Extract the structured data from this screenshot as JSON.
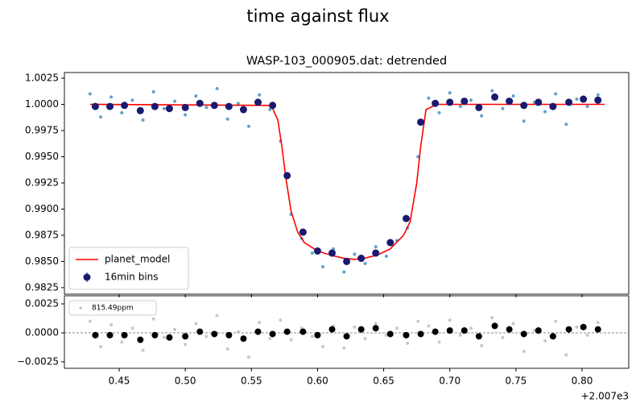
{
  "suptitle": "time against flux",
  "chart_data": [
    {
      "type": "scatter",
      "title": "WASP-103_000905.dat: detrended",
      "xlim": [
        0.4086,
        0.8353
      ],
      "ylim": [
        0.98188,
        1.00304
      ],
      "yticks": [
        1.0025,
        {
          "value": 1,
          "label": "1.0000"
        },
        0.9975,
        {
          "value": 0.995,
          "label": "0.9950"
        },
        0.9925,
        {
          "value": 0.99,
          "label": "0.9900"
        },
        0.9875,
        {
          "value": 0.985,
          "label": "0.9850"
        },
        0.9825
      ],
      "legend": "lower left",
      "series": [
        {
          "type": "points",
          "color": "#1f77b4",
          "x": [
            0.428,
            0.436,
            0.444,
            0.452,
            0.46,
            0.468,
            0.476,
            0.484,
            0.492,
            0.5,
            0.508,
            0.516,
            0.524,
            0.532,
            0.54,
            0.548,
            0.556,
            0.564,
            0.572,
            0.58,
            0.588,
            0.596,
            0.604,
            0.612,
            0.62,
            0.628,
            0.636,
            0.644,
            0.652,
            0.66,
            0.668,
            0.676,
            0.684,
            0.692,
            0.7,
            0.708,
            0.716,
            0.724,
            0.732,
            0.74,
            0.748,
            0.756,
            0.764,
            0.772,
            0.78,
            0.788,
            0.796,
            0.804,
            0.812
          ],
          "values": [
            1.001,
            0.9988,
            1.0007,
            0.9992,
            1.0004,
            0.9985,
            1.0012,
            0.9996,
            1.0003,
            0.999,
            1.0008,
            0.9997,
            1.0015,
            0.9986,
            1.0001,
            0.9979,
            1.0009,
            0.9995,
            0.9965,
            0.9895,
            0.9872,
            0.9858,
            0.9845,
            0.9862,
            0.984,
            0.9857,
            0.9848,
            0.9864,
            0.9855,
            0.987,
            0.9882,
            0.995,
            1.0006,
            0.9992,
            1.0011,
            0.9998,
            1.0004,
            0.9989,
            1.0013,
            0.9996,
            1.0008,
            0.9984,
            1.0002,
            0.9993,
            1.001,
            0.9981,
            1.0005,
            0.9998,
            1.0009
          ]
        },
        {
          "type": "line",
          "name": "planet_model",
          "color": "#ff0000",
          "x": [
            0.428,
            0.565,
            0.57,
            0.573,
            0.576,
            0.58,
            0.585,
            0.59,
            0.6,
            0.61,
            0.62,
            0.628,
            0.635,
            0.645,
            0.655,
            0.665,
            0.67,
            0.675,
            0.678,
            0.682,
            0.69,
            0.817
          ],
          "values": [
            1.0,
            0.9999,
            0.9985,
            0.996,
            0.993,
            0.9898,
            0.9878,
            0.9868,
            0.986,
            0.9856,
            0.9853,
            0.9852,
            0.9853,
            0.9856,
            0.9862,
            0.9875,
            0.9888,
            0.9925,
            0.996,
            0.9995,
            1.0,
            1.0
          ]
        },
        {
          "type": "errorbar",
          "name": "16min bins",
          "color": "#191970",
          "x": [
            0.432,
            0.443,
            0.454,
            0.466,
            0.477,
            0.488,
            0.5,
            0.511,
            0.522,
            0.533,
            0.544,
            0.555,
            0.566,
            0.577,
            0.589,
            0.6,
            0.611,
            0.622,
            0.633,
            0.644,
            0.655,
            0.667,
            0.678,
            0.689,
            0.7,
            0.711,
            0.722,
            0.734,
            0.745,
            0.756,
            0.767,
            0.778,
            0.79,
            0.801,
            0.812
          ],
          "values": [
            0.9998,
            0.9998,
            0.9999,
            0.9994,
            0.9998,
            0.9996,
            0.9997,
            1.0001,
            0.9999,
            0.9998,
            0.9995,
            1.0002,
            0.9999,
            0.9932,
            0.9878,
            0.986,
            0.9858,
            0.985,
            0.9853,
            0.9858,
            0.9868,
            0.9891,
            0.9983,
            1.0001,
            1.0002,
            1.0003,
            0.9997,
            1.0007,
            1.0003,
            0.9999,
            1.0002,
            0.9998,
            1.0002,
            1.0005,
            1.0004
          ],
          "errors": [
            0.0002,
            0.0002,
            0.0002,
            0.0002,
            0.0002,
            0.0002,
            0.0002,
            0.0002,
            0.0002,
            0.0002,
            0.0002,
            0.0002,
            0.0002,
            0.0002,
            0.0002,
            0.0002,
            0.0002,
            0.0002,
            0.0002,
            0.0002,
            0.0002,
            0.0002,
            0.0002,
            0.0002,
            0.0002,
            0.0002,
            0.0002,
            0.0002,
            0.0002,
            0.0002,
            0.0002,
            0.0002,
            0.0003,
            0.0002,
            0.0002
          ]
        }
      ]
    },
    {
      "type": "scatter",
      "xlim": [
        0.4086,
        0.8353
      ],
      "ylim": [
        -0.00306,
        0.0032
      ],
      "xticks": [
        0.45,
        {
          "value": 0.5,
          "label": "0.50"
        },
        0.55,
        {
          "value": 0.6,
          "label": "0.60"
        },
        0.65,
        {
          "value": 0.7,
          "label": "0.70"
        },
        0.75,
        {
          "value": 0.8,
          "label": "0.80"
        }
      ],
      "x_offset_label": "+2.007e3",
      "yticks": [
        0.0025,
        {
          "value": 0,
          "label": "0.0000"
        },
        {
          "value": -0.0025,
          "label": "−0.0025"
        }
      ],
      "hline": 0,
      "legend": "upper left",
      "series": [
        {
          "type": "points",
          "name": "815.49ppm",
          "color": "#b0b0b0",
          "x": [
            0.428,
            0.436,
            0.444,
            0.452,
            0.46,
            0.468,
            0.476,
            0.484,
            0.492,
            0.5,
            0.508,
            0.516,
            0.524,
            0.532,
            0.54,
            0.548,
            0.556,
            0.564,
            0.572,
            0.58,
            0.588,
            0.596,
            0.604,
            0.612,
            0.62,
            0.628,
            0.636,
            0.644,
            0.652,
            0.66,
            0.668,
            0.676,
            0.684,
            0.692,
            0.7,
            0.708,
            0.716,
            0.724,
            0.732,
            0.74,
            0.748,
            0.756,
            0.764,
            0.772,
            0.78,
            0.788,
            0.796,
            0.804,
            0.812
          ],
          "values": [
            0.001,
            -0.0012,
            0.0007,
            -0.0008,
            0.0004,
            -0.0015,
            0.0012,
            -0.0004,
            0.0003,
            -0.001,
            0.0008,
            -0.0003,
            0.0015,
            -0.0014,
            0.0001,
            -0.0021,
            0.0009,
            -0.0005,
            0.0011,
            -0.0006,
            0.0004,
            -0.0003,
            -0.0012,
            0.0006,
            -0.0013,
            0.0005,
            -0.0005,
            0.0008,
            -0.0002,
            0.0004,
            -0.0009,
            0.001,
            0.0006,
            -0.0008,
            0.0011,
            -0.0002,
            0.0004,
            -0.0011,
            0.0013,
            -0.0004,
            0.0008,
            -0.0016,
            0.0002,
            -0.0007,
            0.001,
            -0.0019,
            0.0005,
            -0.0002,
            0.0009
          ]
        },
        {
          "type": "bigpoints",
          "color": "#000000",
          "x": [
            0.432,
            0.443,
            0.454,
            0.466,
            0.477,
            0.488,
            0.5,
            0.511,
            0.522,
            0.533,
            0.544,
            0.555,
            0.566,
            0.577,
            0.589,
            0.6,
            0.611,
            0.622,
            0.633,
            0.644,
            0.655,
            0.667,
            0.678,
            0.689,
            0.7,
            0.711,
            0.722,
            0.734,
            0.745,
            0.756,
            0.767,
            0.778,
            0.79,
            0.801,
            0.812
          ],
          "values": [
            -0.0002,
            -0.0002,
            -0.0002,
            -0.0006,
            -0.0002,
            -0.0004,
            -0.0003,
            0.0001,
            -0.0001,
            -0.0002,
            -0.0005,
            0.0001,
            -0.0001,
            0.0001,
            0.0001,
            -0.0002,
            0.0003,
            -0.0003,
            0.0003,
            0.0004,
            -0.0001,
            -0.0002,
            -0.0001,
            0.0001,
            0.0002,
            0.0002,
            -0.0003,
            0.0006,
            0.0003,
            -0.0001,
            0.0002,
            -0.0003,
            0.0003,
            0.0005,
            0.0003
          ]
        }
      ]
    }
  ]
}
